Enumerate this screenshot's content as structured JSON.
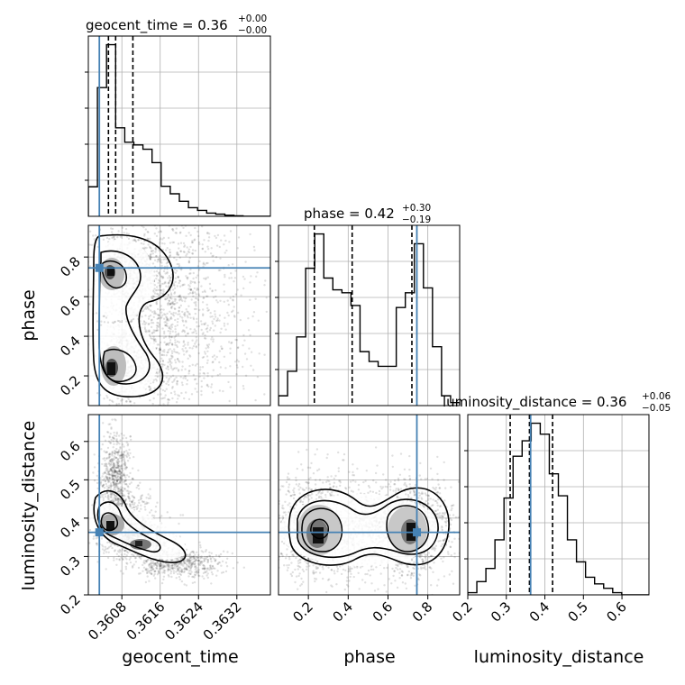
{
  "chart_data": {
    "type": "corner",
    "parameters": [
      "geocent_time",
      "phase",
      "luminosity_distance"
    ],
    "truth_color": "#4682b4",
    "titles": [
      {
        "param": "geocent_time",
        "label": "geocent_time = 0.36",
        "plus": "+0.00",
        "minus": "−0.00"
      },
      {
        "param": "phase",
        "label": "phase = 0.42",
        "plus": "+0.30",
        "minus": "−0.19"
      },
      {
        "param": "luminosity_distance",
        "label": "luminosity_distance = 0.36",
        "plus": "+0.06",
        "minus": "−0.05"
      }
    ],
    "axes": {
      "geocent_time": {
        "range": [
          0.3601,
          0.3639
        ],
        "ticks": [
          0.3608,
          0.3616,
          0.3624,
          0.3632
        ],
        "tick_labels": [
          "0.3608",
          "0.3616",
          "0.3624",
          "0.3632"
        ],
        "truth": 0.36033,
        "quantiles": [
          0.36052,
          0.36067,
          0.36103
        ]
      },
      "phase": {
        "range": [
          0.05,
          0.96
        ],
        "ticks": [
          0.2,
          0.4,
          0.6,
          0.8
        ],
        "tick_labels": [
          "0.2",
          "0.4",
          "0.6",
          "0.8"
        ],
        "truth": 0.745,
        "quantiles": [
          0.23,
          0.42,
          0.72
        ]
      },
      "luminosity_distance": {
        "range": [
          0.2,
          0.67
        ],
        "ticks": [
          0.2,
          0.3,
          0.4,
          0.5,
          0.6
        ],
        "tick_labels": [
          "0.2",
          "0.3",
          "0.4",
          "0.5",
          "0.6"
        ],
        "truth": 0.363,
        "quantiles": [
          0.31,
          0.36,
          0.42
        ]
      }
    },
    "histograms": {
      "geocent_time": {
        "bin_edges": [
          0.3601,
          0.36029,
          0.36048,
          0.36067,
          0.36086,
          0.36105,
          0.36124,
          0.36143,
          0.36162,
          0.36181,
          0.362,
          0.36219,
          0.36238,
          0.36257,
          0.36276,
          0.36295,
          0.36314,
          0.36333,
          0.36352,
          0.36371,
          0.3639
        ],
        "counts": [
          55,
          240,
          320,
          165,
          138,
          133,
          125,
          100,
          56,
          42,
          28,
          16,
          11,
          6,
          4,
          2,
          1,
          0,
          0,
          0
        ]
      },
      "phase": {
        "bin_edges": [
          0.05,
          0.0955,
          0.141,
          0.1865,
          0.232,
          0.2775,
          0.323,
          0.3685,
          0.414,
          0.4595,
          0.505,
          0.5505,
          0.596,
          0.6415,
          0.687,
          0.7325,
          0.778,
          0.8235,
          0.869,
          0.9145,
          0.96
        ],
        "counts": [
          10,
          35,
          70,
          140,
          175,
          130,
          118,
          115,
          102,
          55,
          45,
          40,
          40,
          100,
          115,
          165,
          120,
          60,
          10,
          3
        ]
      },
      "luminosity_distance": {
        "bin_edges": [
          0.2,
          0.2235,
          0.247,
          0.2705,
          0.294,
          0.3175,
          0.341,
          0.3645,
          0.388,
          0.4115,
          0.435,
          0.4585,
          0.482,
          0.5055,
          0.529,
          0.5525,
          0.576,
          0.5995,
          0.623,
          0.6465,
          0.67
        ],
        "counts": [
          1,
          6,
          12,
          25,
          44,
          63,
          70,
          78,
          73,
          55,
          45,
          25,
          15,
          8,
          5,
          3,
          1,
          0,
          0,
          0
        ]
      }
    },
    "scatter_panels": [
      {
        "x": "geocent_time",
        "y": "phase"
      },
      {
        "x": "geocent_time",
        "y": "luminosity_distance"
      },
      {
        "x": "phase",
        "y": "luminosity_distance"
      }
    ],
    "grid": true,
    "legend": "none"
  }
}
